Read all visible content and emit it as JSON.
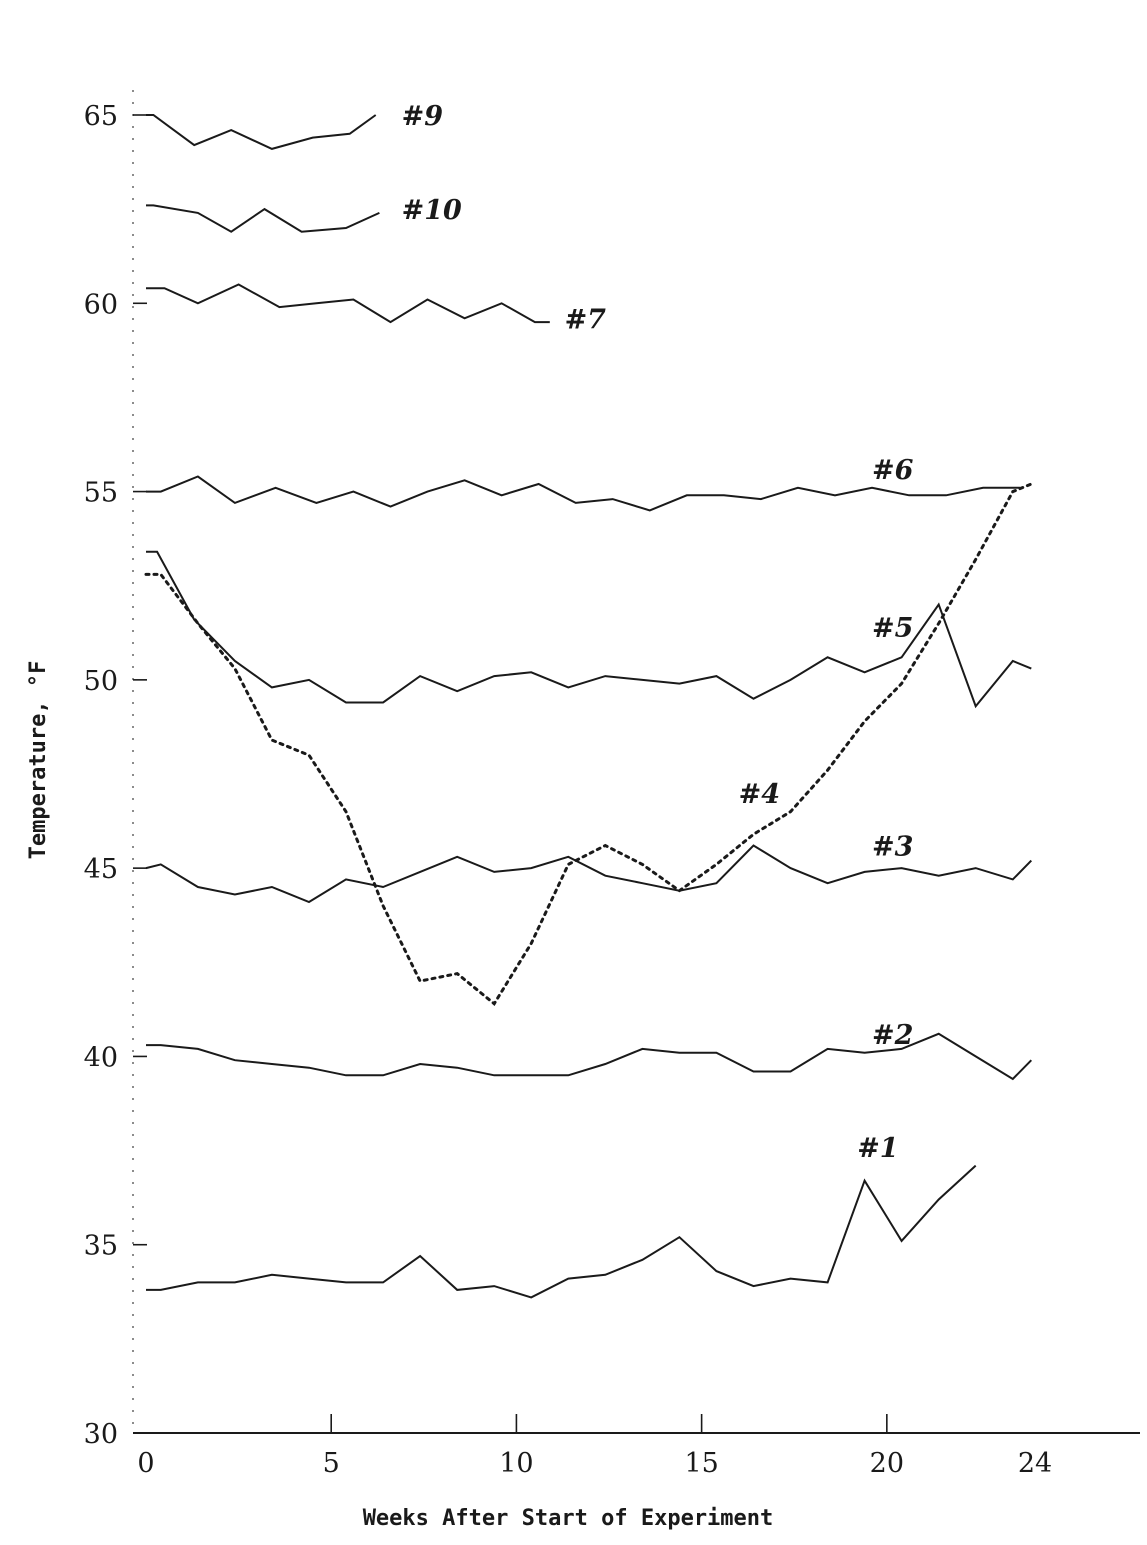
{
  "chart_data": {
    "type": "line",
    "title": "",
    "xlabel": "Weeks After Start of Experiment",
    "ylabel": "Temperature, °F",
    "xlim": [
      0,
      24
    ],
    "ylim": [
      30,
      66
    ],
    "x_ticks": [
      {
        "value": 0,
        "label": "0"
      },
      {
        "value": 5,
        "label": "5"
      },
      {
        "value": 10,
        "label": "10"
      },
      {
        "value": 15,
        "label": "15"
      },
      {
        "value": 20,
        "label": "20"
      },
      {
        "value": 24,
        "label": "24"
      }
    ],
    "y_ticks": [
      {
        "value": 30,
        "label": "30"
      },
      {
        "value": 35,
        "label": "35"
      },
      {
        "value": 40,
        "label": "40"
      },
      {
        "value": 45,
        "label": "45"
      },
      {
        "value": 50,
        "label": "50"
      },
      {
        "value": 55,
        "label": "55"
      },
      {
        "value": 60,
        "label": "60"
      },
      {
        "value": 65,
        "label": "65"
      }
    ],
    "grid": false,
    "series": [
      {
        "name": "#9",
        "style": "solid",
        "label_at": [
          6.9,
          65
        ],
        "x": [
          0,
          0.2,
          1.3,
          2.3,
          3.4,
          4.5,
          5.5,
          6.2
        ],
        "y": [
          65.0,
          65.0,
          64.2,
          64.6,
          64.1,
          64.4,
          64.5,
          65.0
        ]
      },
      {
        "name": "#10",
        "style": "solid",
        "label_at": [
          6.9,
          62.5
        ],
        "x": [
          0,
          0.2,
          1.4,
          2.3,
          3.2,
          4.2,
          5.4,
          6.3
        ],
        "y": [
          62.6,
          62.6,
          62.4,
          61.9,
          62.5,
          61.9,
          62.0,
          62.4
        ]
      },
      {
        "name": "#7",
        "style": "solid",
        "label_at": [
          11.3,
          59.6
        ],
        "x": [
          0,
          0.5,
          1.4,
          2.5,
          3.6,
          4.6,
          5.6,
          6.6,
          7.6,
          8.6,
          9.6,
          10.5,
          10.9
        ],
        "y": [
          60.4,
          60.4,
          60.0,
          60.5,
          59.9,
          60.0,
          60.1,
          59.5,
          60.1,
          59.6,
          60.0,
          59.5,
          59.5
        ]
      },
      {
        "name": "#6",
        "style": "solid",
        "label_at": [
          19.6,
          55.6
        ],
        "x": [
          0,
          0.4,
          1.4,
          2.4,
          3.5,
          4.6,
          5.6,
          6.6,
          7.6,
          8.6,
          9.6,
          10.6,
          11.6,
          12.6,
          13.6,
          14.6,
          15.6,
          16.6,
          17.6,
          18.6,
          19.6,
          20.6,
          21.6,
          22.6,
          23.6
        ],
        "y": [
          55.0,
          55.0,
          55.4,
          54.7,
          55.1,
          54.7,
          55.0,
          54.6,
          55.0,
          55.3,
          54.9,
          55.2,
          54.7,
          54.8,
          54.5,
          54.9,
          54.9,
          54.8,
          55.1,
          54.9,
          55.1,
          54.9,
          54.9,
          55.1,
          55.1
        ]
      },
      {
        "name": "#5",
        "style": "solid",
        "label_at": [
          19.6,
          51.4
        ],
        "x": [
          0,
          0.3,
          1.3,
          2.4,
          3.4,
          4.4,
          5.4,
          6.4,
          7.4,
          8.4,
          9.4,
          10.4,
          11.4,
          12.4,
          13.4,
          14.4,
          15.4,
          16.4,
          17.4,
          18.4,
          19.4,
          20.4,
          21.4,
          22.4,
          23.4,
          23.9
        ],
        "y": [
          53.4,
          53.4,
          51.6,
          50.5,
          49.8,
          50.0,
          49.4,
          49.4,
          50.1,
          49.7,
          50.1,
          50.2,
          49.8,
          50.1,
          50.0,
          49.9,
          50.1,
          49.5,
          50.0,
          50.6,
          50.2,
          50.6,
          52.0,
          49.3,
          50.5,
          50.3
        ]
      },
      {
        "name": "#4",
        "style": "dotted",
        "label_at": [
          16,
          47.0
        ],
        "x": [
          0,
          0.4,
          1.4,
          2.4,
          3.4,
          4.4,
          5.4,
          6.4,
          7.4,
          8.4,
          9.4,
          10.4,
          11.4,
          12.4,
          13.4,
          14.4,
          15.4,
          16.4,
          17.4,
          18.4,
          19.4,
          20.4,
          21.4,
          22.4,
          23.4,
          23.9
        ],
        "y": [
          52.8,
          52.8,
          51.5,
          50.3,
          48.4,
          48.0,
          46.5,
          44.0,
          42.0,
          42.2,
          41.4,
          43.0,
          45.1,
          45.6,
          45.1,
          44.4,
          45.1,
          45.9,
          46.5,
          47.6,
          48.9,
          49.9,
          51.5,
          53.2,
          55.0,
          55.2
        ]
      },
      {
        "name": "#3",
        "style": "solid",
        "label_at": [
          19.6,
          45.6
        ],
        "x": [
          0,
          0.4,
          1.4,
          2.4,
          3.4,
          4.4,
          5.4,
          6.4,
          7.4,
          8.4,
          9.4,
          10.4,
          11.4,
          12.4,
          13.4,
          14.4,
          15.4,
          16.4,
          17.4,
          18.4,
          19.4,
          20.4,
          21.4,
          22.4,
          23.4,
          23.9
        ],
        "y": [
          45.0,
          45.1,
          44.5,
          44.3,
          44.5,
          44.1,
          44.7,
          44.5,
          44.9,
          45.3,
          44.9,
          45.0,
          45.3,
          44.8,
          44.6,
          44.4,
          44.6,
          45.6,
          45.0,
          44.6,
          44.9,
          45.0,
          44.8,
          45.0,
          44.7,
          45.2
        ]
      },
      {
        "name": "#2",
        "style": "solid",
        "label_at": [
          19.6,
          40.6
        ],
        "x": [
          0,
          0.4,
          1.4,
          2.4,
          3.4,
          4.4,
          5.4,
          6.4,
          7.4,
          8.4,
          9.4,
          10.4,
          11.4,
          12.4,
          13.4,
          14.4,
          15.4,
          16.4,
          17.4,
          18.4,
          19.4,
          20.4,
          21.4,
          22.4,
          23.4,
          23.9
        ],
        "y": [
          40.3,
          40.3,
          40.2,
          39.9,
          39.8,
          39.7,
          39.5,
          39.5,
          39.8,
          39.7,
          39.5,
          39.5,
          39.5,
          39.8,
          40.2,
          40.1,
          40.1,
          39.6,
          39.6,
          40.2,
          40.1,
          40.2,
          40.6,
          40.0,
          39.4,
          39.9
        ]
      },
      {
        "name": "#1",
        "style": "solid",
        "label_at": [
          19.2,
          37.6
        ],
        "x": [
          0,
          0.4,
          1.4,
          2.4,
          3.4,
          4.4,
          5.4,
          6.4,
          7.4,
          8.4,
          9.4,
          10.4,
          11.4,
          12.4,
          13.4,
          14.4,
          15.4,
          16.4,
          17.4,
          18.4,
          19.4,
          20.4,
          21.4,
          22.4
        ],
        "y": [
          33.8,
          33.8,
          34.0,
          34.0,
          34.2,
          34.1,
          34.0,
          34.0,
          34.7,
          33.8,
          33.9,
          33.6,
          34.1,
          34.2,
          34.6,
          35.2,
          34.3,
          33.9,
          34.1,
          34.0,
          36.7,
          35.1,
          36.2,
          37.1
        ]
      }
    ]
  }
}
